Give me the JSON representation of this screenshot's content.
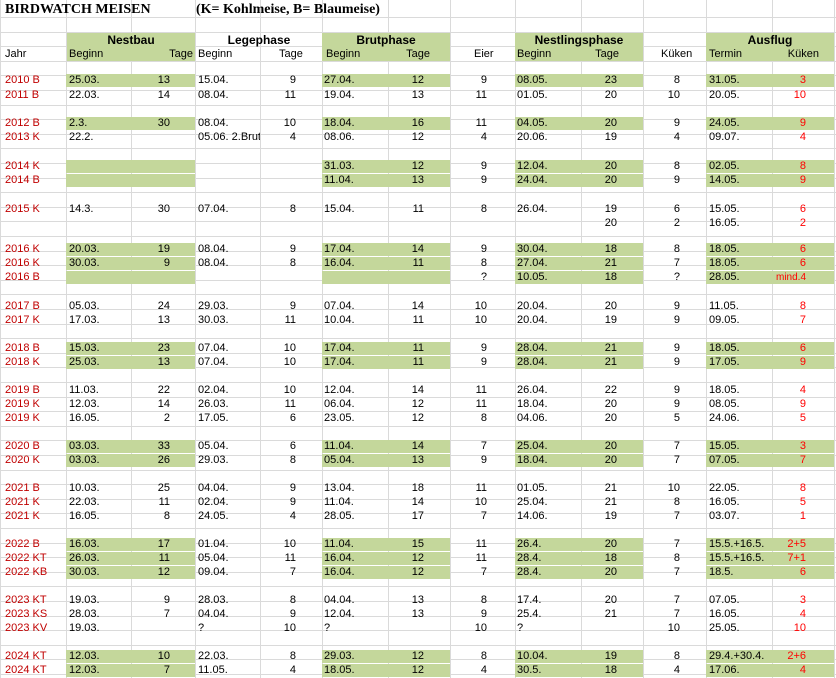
{
  "title": "BIRDWATCH MEISEN",
  "subtitle": "(K= Kohlmeise, B= Blaumeise)",
  "groups": {
    "nestbau": "Nestbau",
    "legephase": "Legephase",
    "brutphase": "Brutphase",
    "nestlingsphase": "Nestlingsphase",
    "ausflug": "Ausflug"
  },
  "columns": {
    "jahr": "Jahr",
    "nb_beginn": "Beginn",
    "nb_tage": "Tage",
    "lp_beginn": "Beginn",
    "lp_tage": "Tage",
    "bp_beginn": "Beginn",
    "bp_tage": "Tage",
    "eier": "Eier",
    "np_beginn": "Beginn",
    "np_tage": "Tage",
    "kueken": "Küken",
    "termin": "Termin",
    "af_kueken": "Küken"
  },
  "colors": {
    "green_fill": "#c4d79b",
    "year_text": "#c00000",
    "ausflug_kueken": "#ff0000",
    "grid": "#dadada"
  },
  "rows": [
    {
      "year": "2010  B",
      "nb": "25.03.",
      "nbt": "13",
      "lp": "15.04.",
      "lpt": "9",
      "bp": "27.04.",
      "bpt": "12",
      "eier": "9",
      "np": "08.05.",
      "npt": "23",
      "k": "8",
      "termin": "31.05.",
      "ak": "3",
      "green": true
    },
    {
      "year": "2011  B",
      "nb": "22.03.",
      "nbt": "14",
      "lp": "08.04.",
      "lpt": "11",
      "bp": "19.04.",
      "bpt": "13",
      "eier": "11",
      "np": "01.05.",
      "npt": "20",
      "k": "10",
      "termin": "20.05.",
      "ak": "10",
      "green": false
    },
    {
      "year": "2012  B",
      "nb": "2.3.",
      "nbt": "30",
      "lp": "08.04.",
      "lpt": "10",
      "bp": "18.04.",
      "bpt": "16",
      "eier": "11",
      "np": "04.05.",
      "npt": "20",
      "k": "9",
      "termin": "24.05.",
      "ak": "9",
      "green": true
    },
    {
      "year": "2013  K",
      "nb": "22.2.",
      "nbt": "",
      "lp": "05.06. 2.Brut",
      "lpt": "4",
      "bp": "08.06.",
      "bpt": "12",
      "eier": "4",
      "np": "20.06.",
      "npt": "19",
      "k": "4",
      "termin": "09.07.",
      "ak": "4",
      "green": false
    },
    {
      "year": "2014  K",
      "nb": "",
      "nbt": "",
      "lp": "",
      "lpt": "",
      "bp": "31.03.",
      "bpt": "12",
      "eier": "9",
      "np": "12.04.",
      "npt": "20",
      "k": "8",
      "termin": "02.05.",
      "ak": "8",
      "green": true
    },
    {
      "year": "2014  B",
      "nb": "",
      "nbt": "",
      "lp": "",
      "lpt": "",
      "bp": "11.04.",
      "bpt": "13",
      "eier": "9",
      "np": "24.04.",
      "npt": "20",
      "k": "9",
      "termin": "14.05.",
      "ak": "9",
      "green": true
    },
    {
      "year": "2015  K",
      "nb": "14.3.",
      "nbt": "30",
      "lp": "07.04.",
      "lpt": "8",
      "bp": "15.04.",
      "bpt": "11",
      "eier": "8",
      "np": "26.04.",
      "npt": "19",
      "k": "6",
      "termin": "15.05.",
      "ak": "6",
      "green": false
    },
    {
      "year": "",
      "nb": "",
      "nbt": "",
      "lp": "",
      "lpt": "",
      "bp": "",
      "bpt": "",
      "eier": "",
      "np": "",
      "npt": "20",
      "k": "2",
      "termin": "16.05.",
      "ak": "2",
      "green": false
    },
    {
      "year": "2016  K",
      "nb": "20.03.",
      "nbt": "19",
      "lp": "08.04.",
      "lpt": "9",
      "bp": "17.04.",
      "bpt": "14",
      "eier": "9",
      "np": "30.04.",
      "npt": "18",
      "k": "8",
      "termin": "18.05.",
      "ak": "6",
      "green": true
    },
    {
      "year": "2016  K",
      "nb": "30.03.",
      "nbt": "9",
      "lp": "08.04.",
      "lpt": "8",
      "bp": "16.04.",
      "bpt": "11",
      "eier": "8",
      "np": "27.04.",
      "npt": "21",
      "k": "7",
      "termin": "18.05.",
      "ak": "6",
      "green": true
    },
    {
      "year": "2016  B",
      "nb": "",
      "nbt": "",
      "lp": "",
      "lpt": "",
      "bp": "",
      "bpt": "",
      "eier": "?",
      "np": "10.05.",
      "npt": "18",
      "k": "?",
      "termin": "28.05.",
      "ak": "mind.4",
      "green": true
    },
    {
      "year": "2017 B",
      "nb": "05.03.",
      "nbt": "24",
      "lp": "29.03.",
      "lpt": "9",
      "bp": "07.04.",
      "bpt": "14",
      "eier": "10",
      "np": "20.04.",
      "npt": "20",
      "k": "9",
      "termin": "11.05.",
      "ak": "8",
      "green": false
    },
    {
      "year": "2017 K",
      "nb": "17.03.",
      "nbt": "13",
      "lp": "30.03.",
      "lpt": "11",
      "bp": "10.04.",
      "bpt": "11",
      "eier": "10",
      "np": "20.04.",
      "npt": "19",
      "k": "9",
      "termin": "09.05.",
      "ak": "7",
      "green": false
    },
    {
      "year": "2018 B",
      "nb": "15.03.",
      "nbt": "23",
      "lp": "07.04.",
      "lpt": "10",
      "bp": "17.04.",
      "bpt": "11",
      "eier": "9",
      "np": "28.04.",
      "npt": "21",
      "k": "9",
      "termin": "18.05.",
      "ak": "6",
      "green": true
    },
    {
      "year": "2018 K",
      "nb": "25.03.",
      "nbt": "13",
      "lp": "07.04.",
      "lpt": "10",
      "bp": "17.04.",
      "bpt": "11",
      "eier": "9",
      "np": "28.04.",
      "npt": "21",
      "k": "9",
      "termin": "17.05.",
      "ak": "9",
      "green": true
    },
    {
      "year": "2019 B",
      "nb": "11.03.",
      "nbt": "22",
      "lp": "02.04.",
      "lpt": "10",
      "bp": "12.04.",
      "bpt": "14",
      "eier": "11",
      "np": "26.04.",
      "npt": "22",
      "k": "9",
      "termin": "18.05.",
      "ak": "4",
      "green": false
    },
    {
      "year": "2019 K",
      "nb": "12.03.",
      "nbt": "14",
      "lp": "26.03.",
      "lpt": "11",
      "bp": "06.04.",
      "bpt": "12",
      "eier": "11",
      "np": "18.04.",
      "npt": "20",
      "k": "9",
      "termin": "08.05.",
      "ak": "9",
      "green": false
    },
    {
      "year": "2019 K",
      "nb": "16.05.",
      "nbt": "2",
      "lp": "17.05.",
      "lpt": "6",
      "bp": "23.05.",
      "bpt": "12",
      "eier": "8",
      "np": "04.06.",
      "npt": "20",
      "k": "5",
      "termin": "24.06.",
      "ak": "5",
      "green": false
    },
    {
      "year": "2020 B",
      "nb": "03.03.",
      "nbt": "33",
      "lp": "05.04.",
      "lpt": "6",
      "bp": "11.04.",
      "bpt": "14",
      "eier": "7",
      "np": "25.04.",
      "npt": "20",
      "k": "7",
      "termin": "15.05.",
      "ak": "3",
      "green": true
    },
    {
      "year": "2020 K",
      "nb": "03.03.",
      "nbt": "26",
      "lp": "29.03.",
      "lpt": "8",
      "bp": "05.04.",
      "bpt": "13",
      "eier": "9",
      "np": "18.04.",
      "npt": "20",
      "k": "7",
      "termin": "07.05.",
      "ak": "7",
      "green": true
    },
    {
      "year": "2021 B",
      "nb": "10.03.",
      "nbt": "25",
      "lp": "04.04.",
      "lpt": "9",
      "bp": "13.04.",
      "bpt": "18",
      "eier": "11",
      "np": "01.05.",
      "npt": "21",
      "k": "10",
      "termin": "22.05.",
      "ak": "8",
      "green": false
    },
    {
      "year": "2021 K",
      "nb": "22.03.",
      "nbt": "11",
      "lp": "02.04.",
      "lpt": "9",
      "bp": "11.04.",
      "bpt": "14",
      "eier": "10",
      "np": "25.04.",
      "npt": "21",
      "k": "8",
      "termin": "16.05.",
      "ak": "5",
      "green": false
    },
    {
      "year": "2021 K",
      "nb": "16.05.",
      "nbt": "8",
      "lp": "24.05.",
      "lpt": "4",
      "bp": "28.05.",
      "bpt": "17",
      "eier": "7",
      "np": "14.06.",
      "npt": "19",
      "k": "7",
      "termin": "03.07.",
      "ak": "1",
      "green": false
    },
    {
      "year": "2022 B",
      "nb": "16.03.",
      "nbt": "17",
      "lp": "01.04.",
      "lpt": "10",
      "bp": "11.04.",
      "bpt": "15",
      "eier": "11",
      "np": "26.4.",
      "npt": "20",
      "k": "7",
      "termin": "15.5.+16.5.",
      "ak": "2+5",
      "green": true
    },
    {
      "year": "2022 KT",
      "nb": "26.03.",
      "nbt": "11",
      "lp": "05.04.",
      "lpt": "11",
      "bp": "16.04.",
      "bpt": "12",
      "eier": "11",
      "np": "28.4.",
      "npt": "18",
      "k": "8",
      "termin": "15.5.+16.5.",
      "ak": "7+1",
      "green": true
    },
    {
      "year": "2022 KB",
      "nb": "30.03.",
      "nbt": "12",
      "lp": "09.04.",
      "lpt": "7",
      "bp": "16.04.",
      "bpt": "12",
      "eier": "7",
      "np": "28.4.",
      "npt": "20",
      "k": "7",
      "termin": "18.5.",
      "ak": "6",
      "green": true
    },
    {
      "year": "2023 KT",
      "nb": "19.03.",
      "nbt": "9",
      "lp": "28.03.",
      "lpt": "8",
      "bp": "04.04.",
      "bpt": "13",
      "eier": "8",
      "np": "17.4.",
      "npt": "20",
      "k": "7",
      "termin": "07.05.",
      "ak": "3",
      "green": false
    },
    {
      "year": "2023 KS",
      "nb": "28.03.",
      "nbt": "7",
      "lp": "04.04.",
      "lpt": "9",
      "bp": "12.04.",
      "bpt": "13",
      "eier": "9",
      "np": "25.4.",
      "npt": "21",
      "k": "7",
      "termin": "16.05.",
      "ak": "4",
      "green": false
    },
    {
      "year": "2023 KV",
      "nb": "19.03.",
      "nbt": "",
      "lp": "?",
      "lpt": "10",
      "bp": "?",
      "bpt": "",
      "eier": "10",
      "np": "?",
      "npt": "",
      "k": "10",
      "termin": "25.05.",
      "ak": "10",
      "green": false
    },
    {
      "year": "2024 KT",
      "nb": "12.03.",
      "nbt": "10",
      "lp": "22.03.",
      "lpt": "8",
      "bp": "29.03.",
      "bpt": "12",
      "eier": "8",
      "np": "10.04.",
      "npt": "19",
      "k": "8",
      "termin": "29.4.+30.4.",
      "ak": "2+6",
      "green": true
    },
    {
      "year": "2024 KT",
      "nb": "12.03.",
      "nbt": "7",
      "lp": "11.05.",
      "lpt": "4",
      "bp": "18.05.",
      "bpt": "12",
      "eier": "4",
      "np": "30.5.",
      "npt": "18",
      "k": "4",
      "termin": "17.06.",
      "ak": "4",
      "green": true
    }
  ]
}
